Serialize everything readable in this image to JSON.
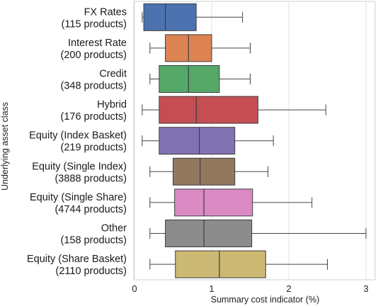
{
  "chart_data": {
    "type": "box",
    "orientation": "horizontal",
    "xlabel": "Summary cost indicator (%)",
    "ylabel": "Underlying asset class",
    "xlim": [
      -0.1,
      3.05
    ],
    "x_ticks": [
      0,
      1,
      2,
      3
    ],
    "grid": true,
    "categories": [
      {
        "name": "FX Rates",
        "count": "(115 products)",
        "color": "#4c72b0",
        "whisker_low": 0.1,
        "q1": 0.12,
        "median": 0.4,
        "q3": 0.8,
        "whisker_high": 1.4
      },
      {
        "name": "Interest Rate",
        "count": "(200 products)",
        "color": "#dd8452",
        "whisker_low": 0.2,
        "q1": 0.4,
        "median": 0.7,
        "q3": 1.0,
        "whisker_high": 1.5
      },
      {
        "name": "Credit",
        "count": "(348 products)",
        "color": "#55a868",
        "whisker_low": 0.2,
        "q1": 0.32,
        "median": 0.7,
        "q3": 1.1,
        "whisker_high": 1.5
      },
      {
        "name": "Hybrid",
        "count": "(176 products)",
        "color": "#c44e52",
        "whisker_low": 0.1,
        "q1": 0.32,
        "median": 0.8,
        "q3": 1.6,
        "whisker_high": 2.48
      },
      {
        "name": "Equity (Index Basket)",
        "count": "(219 products)",
        "color": "#8172b3",
        "whisker_low": 0.1,
        "q1": 0.32,
        "median": 0.84,
        "q3": 1.3,
        "whisker_high": 1.8
      },
      {
        "name": "Equity (Single Index)",
        "count": "(3888 products)",
        "color": "#937860",
        "whisker_low": 0.2,
        "q1": 0.5,
        "median": 0.85,
        "q3": 1.3,
        "whisker_high": 1.73
      },
      {
        "name": "Equity (Single Share)",
        "count": "(4744 products)",
        "color": "#da8bc3",
        "whisker_low": 0.2,
        "q1": 0.52,
        "median": 0.9,
        "q3": 1.53,
        "whisker_high": 2.3
      },
      {
        "name": "Other",
        "count": "(158 products)",
        "color": "#8c8c8c",
        "whisker_low": 0.2,
        "q1": 0.4,
        "median": 0.9,
        "q3": 1.52,
        "whisker_high": 3.0
      },
      {
        "name": "Equity (Share Basket)",
        "count": "(2110 products)",
        "color": "#ccb974",
        "whisker_low": 0.2,
        "q1": 0.53,
        "median": 1.1,
        "q3": 1.7,
        "whisker_high": 2.5
      }
    ]
  }
}
